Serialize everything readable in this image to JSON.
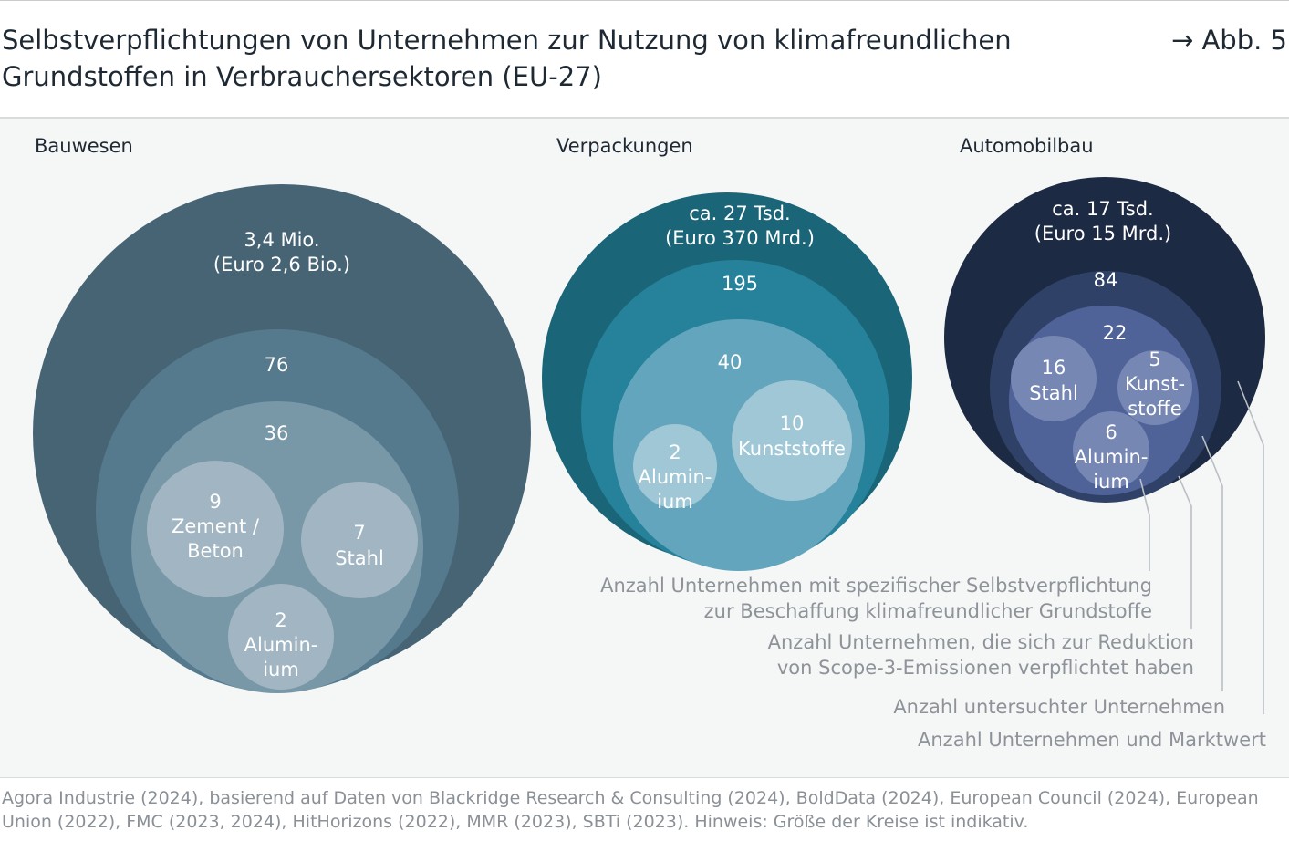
{
  "header": {
    "title_line1": "Selbstverpflichtungen von Unternehmen zur Nutzung von klimafreundlichen",
    "title_line2": "Grundstoffen in Verbrauchersektoren (EU-27)",
    "figure_ref": "→ Abb. 5"
  },
  "chart_data": {
    "type": "nested-bubble",
    "sectors": [
      {
        "name": "Bauwesen",
        "companies_and_market_value": [
          "3,4 Mio.",
          "(Euro 2,6 Bio.)"
        ],
        "examined": "76",
        "scope3": "36",
        "materials": [
          {
            "value": "9",
            "label": [
              "Zement /",
              "Beton"
            ]
          },
          {
            "value": "7",
            "label": [
              "Stahl"
            ]
          },
          {
            "value": "2",
            "label": [
              "Alumin-",
              "ium"
            ]
          }
        ],
        "colors": [
          "#476475",
          "#557a8e",
          "#7897a7",
          "#a1b6c2"
        ]
      },
      {
        "name": "Verpackungen",
        "companies_and_market_value": [
          "ca. 27 Tsd.",
          "(Euro 370 Mrd.)"
        ],
        "examined": "195",
        "scope3": "40",
        "materials": [
          {
            "value": "2",
            "label": [
              "Alumin-",
              "ium"
            ]
          },
          {
            "value": "10",
            "label": [
              "Kunststoffe"
            ]
          }
        ],
        "colors": [
          "#1a6577",
          "#25829a",
          "#63a5bd",
          "#a0c7d5"
        ]
      },
      {
        "name": "Automobilbau",
        "companies_and_market_value": [
          "ca. 17 Tsd.",
          "(Euro 15 Mrd.)"
        ],
        "examined": "84",
        "scope3": "22",
        "materials": [
          {
            "value": "16",
            "label": [
              "Stahl"
            ]
          },
          {
            "value": "5",
            "label": [
              "Kunst-",
              "stoffe"
            ]
          },
          {
            "value": "6",
            "label": [
              "Alumin-",
              "ium"
            ]
          }
        ],
        "colors": [
          "#1d2a43",
          "#2f4167",
          "#4f6399",
          "#7787b3"
        ]
      }
    ],
    "legend": [
      [
        "Anzahl Unternehmen mit spezifischer Selbstverpflichtung",
        "zur Beschaffung klimafreundlicher Grundstoffe"
      ],
      [
        "Anzahl Unternehmen, die sich zur Reduktion",
        "von Scope-3-Emissionen verpflichtet haben"
      ],
      [
        "Anzahl untersuchter Unternehmen"
      ],
      [
        "Anzahl Unternehmen und Marktwert"
      ]
    ]
  },
  "footer": {
    "source_line1": "Agora Industrie (2024), basierend auf Daten von Blackridge Research & Consulting (2024), BoldData (2024), European Council (2024), European",
    "source_line2": "Union (2022), FMC (2023, 2024), HitHorizons (2022), MMR (2023), SBTi (2023). Hinweis: Größe der Kreise ist indikativ."
  }
}
